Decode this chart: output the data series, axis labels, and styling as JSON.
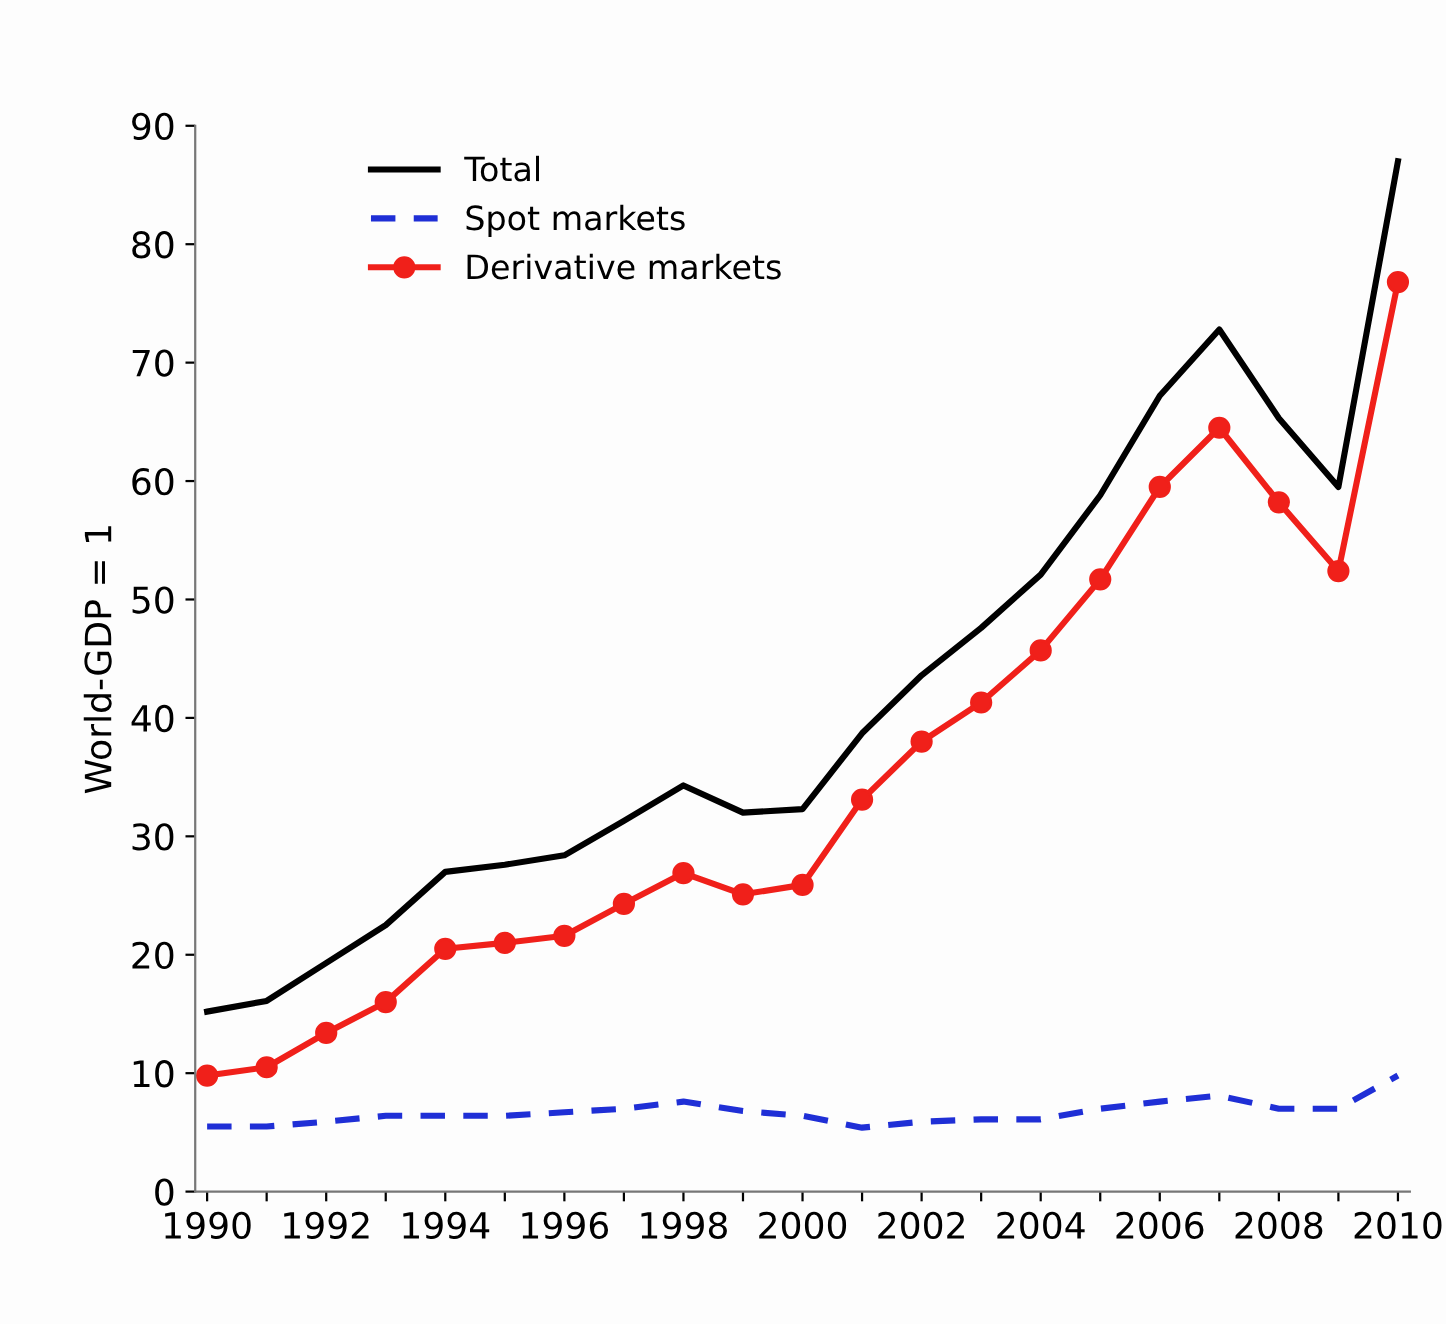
{
  "chart_data": {
    "type": "line",
    "ylabel": "World-GDP = 1",
    "x": [
      1990,
      1991,
      1992,
      1993,
      1994,
      1995,
      1996,
      1997,
      1998,
      1999,
      2000,
      2001,
      2002,
      2003,
      2004,
      2005,
      2006,
      2007,
      2008,
      2009,
      2010
    ],
    "series": [
      {
        "name": "Total",
        "color": "#000000",
        "line_style": "solid",
        "marker": "none",
        "values": [
          15.2,
          16.1,
          19.3,
          22.5,
          27.0,
          27.6,
          28.4,
          31.3,
          34.3,
          32.0,
          32.3,
          38.7,
          43.6,
          47.6,
          52.1,
          58.8,
          67.2,
          72.8,
          65.3,
          59.5,
          87.0
        ]
      },
      {
        "name": "Spot markets",
        "color": "#1f2fd6",
        "line_style": "dashed",
        "marker": "none",
        "values": [
          5.5,
          5.5,
          5.9,
          6.4,
          6.4,
          6.4,
          6.7,
          7.0,
          7.6,
          6.8,
          6.4,
          5.4,
          5.9,
          6.1,
          6.1,
          7.0,
          7.6,
          8.1,
          7.0,
          7.0,
          9.8
        ]
      },
      {
        "name": "Derivative markets",
        "color": "#f0201a",
        "line_style": "solid",
        "marker": "circle",
        "values": [
          9.8,
          10.5,
          13.4,
          16.0,
          20.5,
          21.0,
          21.6,
          24.3,
          26.9,
          25.1,
          25.9,
          33.1,
          38.0,
          41.3,
          45.7,
          51.7,
          59.5,
          64.5,
          58.2,
          52.4,
          76.8
        ]
      }
    ],
    "xlim": [
      1989.8,
      2010.2
    ],
    "xticks": [
      1990,
      {
        "value": 1991,
        "label": null
      },
      1992,
      {
        "value": 1993,
        "label": null
      },
      1994,
      {
        "value": 1995,
        "label": null
      },
      1996,
      {
        "value": 1997,
        "label": null
      },
      1998,
      {
        "value": 1999,
        "label": null
      },
      2000,
      {
        "value": 2001,
        "label": null
      },
      2002,
      {
        "value": 2003,
        "label": null
      },
      2004,
      {
        "value": 2005,
        "label": null
      },
      2006,
      {
        "value": 2007,
        "label": null
      },
      2008,
      {
        "value": 2009,
        "label": null
      },
      2010
    ],
    "ylim": [
      0,
      90
    ],
    "yticks": [
      0,
      10,
      20,
      30,
      40,
      50,
      60,
      70,
      80,
      90
    ],
    "grid": false,
    "legend": "top left"
  }
}
